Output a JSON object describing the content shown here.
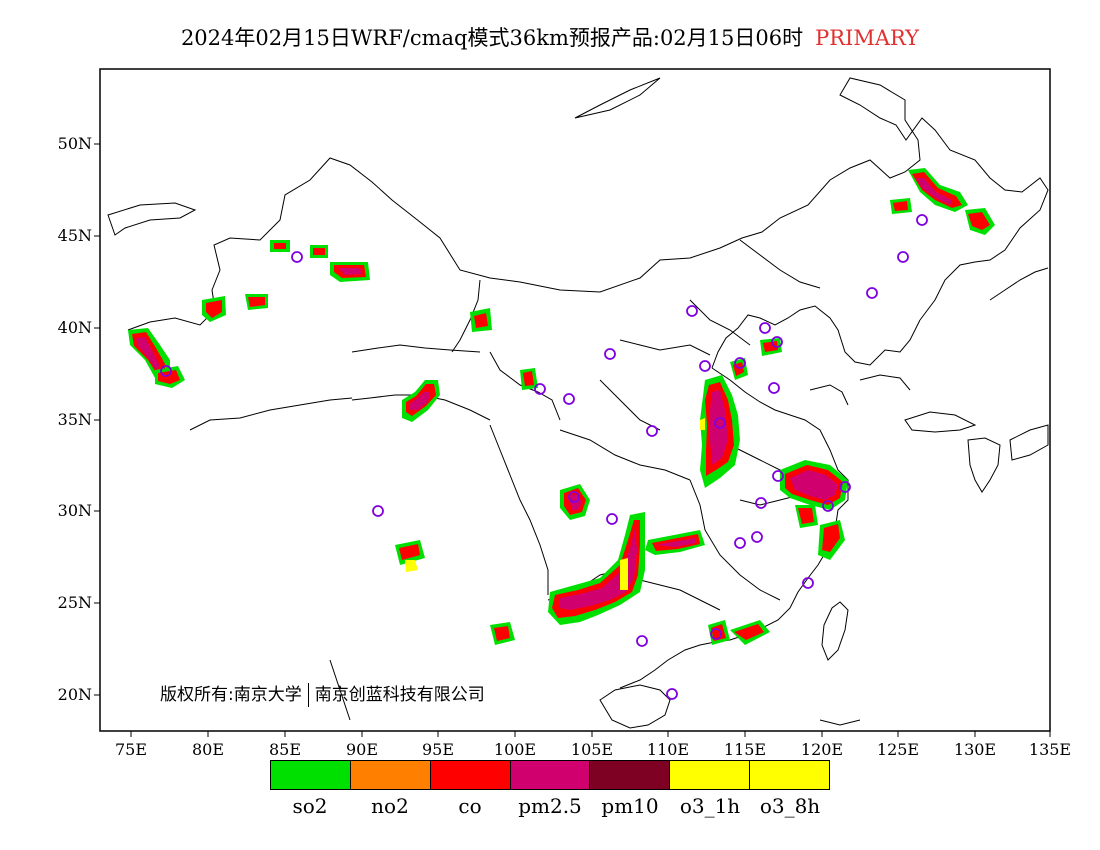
{
  "title": {
    "main": "2024年02月15日WRF/cmaq模式36km预报产品:02月15日06时",
    "tag": "PRIMARY"
  },
  "y_ticks": [
    "50N",
    "45N",
    "40N",
    "35N",
    "30N",
    "25N",
    "20N"
  ],
  "x_ticks": [
    "75E",
    "80E",
    "85E",
    "90E",
    "95E",
    "100E",
    "105E",
    "110E",
    "115E",
    "120E",
    "125E",
    "130E",
    "135E"
  ],
  "copyright": {
    "left": "版权所有:南京大学",
    "right": "南京创蓝科技有限公司"
  },
  "legend": [
    {
      "label": "so2",
      "color": "#00e000"
    },
    {
      "label": "no2",
      "color": "#ff8000"
    },
    {
      "label": "co",
      "color": "#ff0000"
    },
    {
      "label": "pm2.5",
      "color": "#d0006f"
    },
    {
      "label": "pm10",
      "color": "#7e0023"
    },
    {
      "label": "o3_1h",
      "color": "#ffff00"
    },
    {
      "label": "o3_8h",
      "color": "#ffff00"
    }
  ]
}
